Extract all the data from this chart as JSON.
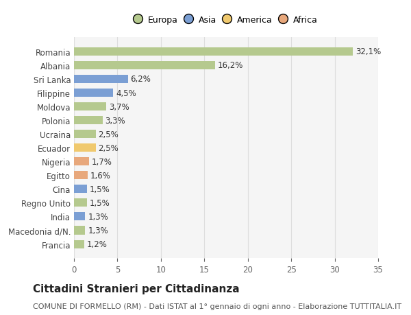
{
  "categories": [
    "Francia",
    "Macedonia d/N.",
    "India",
    "Regno Unito",
    "Cina",
    "Egitto",
    "Nigeria",
    "Ecuador",
    "Ucraina",
    "Polonia",
    "Moldova",
    "Filippine",
    "Sri Lanka",
    "Albania",
    "Romania"
  ],
  "values": [
    1.2,
    1.3,
    1.3,
    1.5,
    1.5,
    1.6,
    1.7,
    2.5,
    2.5,
    3.3,
    3.7,
    4.5,
    6.2,
    16.2,
    32.1
  ],
  "labels": [
    "1,2%",
    "1,3%",
    "1,3%",
    "1,5%",
    "1,5%",
    "1,6%",
    "1,7%",
    "2,5%",
    "2,5%",
    "3,3%",
    "3,7%",
    "4,5%",
    "6,2%",
    "16,2%",
    "32,1%"
  ],
  "colors": [
    "#b5c98e",
    "#b5c98e",
    "#7b9fd4",
    "#b5c98e",
    "#7b9fd4",
    "#e8a87c",
    "#e8a87c",
    "#f0c96e",
    "#b5c98e",
    "#b5c98e",
    "#b5c98e",
    "#7b9fd4",
    "#7b9fd4",
    "#b5c98e",
    "#b5c98e"
  ],
  "legend_labels": [
    "Europa",
    "Asia",
    "America",
    "Africa"
  ],
  "legend_colors": [
    "#b5c98e",
    "#7b9fd4",
    "#f0c96e",
    "#e8a87c"
  ],
  "title": "Cittadini Stranieri per Cittadinanza",
  "subtitle": "COMUNE DI FORMELLO (RM) - Dati ISTAT al 1° gennaio di ogni anno - Elaborazione TUTTITALIA.IT",
  "xlim": [
    0,
    35
  ],
  "xticks": [
    0,
    5,
    10,
    15,
    20,
    25,
    30,
    35
  ],
  "background_color": "#ffffff",
  "plot_bg_color": "#f5f5f5",
  "grid_color": "#dddddd",
  "bar_height": 0.6,
  "label_fontsize": 8.5,
  "title_fontsize": 11,
  "subtitle_fontsize": 8,
  "tick_fontsize": 8.5,
  "legend_fontsize": 9
}
